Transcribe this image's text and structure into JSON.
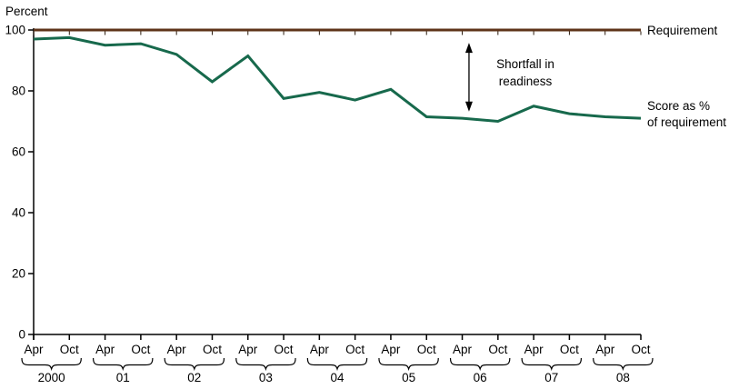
{
  "chart_data": {
    "type": "line",
    "title": "",
    "ylabel": "Percent",
    "xlabel": "",
    "ylim": [
      0,
      100
    ],
    "yticks": [
      0,
      20,
      40,
      60,
      80,
      100
    ],
    "grid": false,
    "legend_position": "right-of-lines",
    "x_tick_labels": [
      "Apr",
      "Oct",
      "Apr",
      "Oct",
      "Apr",
      "Oct",
      "Apr",
      "Oct",
      "Apr",
      "Oct",
      "Apr",
      "Oct",
      "Apr",
      "Oct",
      "Apr",
      "Oct",
      "Apr",
      "Oct"
    ],
    "year_groups": [
      "2000",
      "01",
      "02",
      "03",
      "04",
      "05",
      "06",
      "07",
      "08"
    ],
    "series": [
      {
        "name": "Requirement",
        "color": "#5e3419",
        "constant_value": 100,
        "values": [
          100,
          100,
          100,
          100,
          100,
          100,
          100,
          100,
          100,
          100,
          100,
          100,
          100,
          100,
          100,
          100,
          100,
          100
        ]
      },
      {
        "name": "Score as % of requirement",
        "color": "#17694c",
        "values": [
          97,
          97.5,
          95,
          95.5,
          92,
          83,
          91.5,
          77.5,
          79.5,
          77,
          80.5,
          71.5,
          71,
          70,
          75,
          72.5,
          71.5,
          71
        ]
      }
    ],
    "annotation": {
      "line1": "Shortfall in",
      "line2": "readiness",
      "arrow_between_values": [
        95.5,
        73.5
      ],
      "arrow_x_fraction": 0.717
    }
  },
  "labels": {
    "percent": "Percent",
    "requirement": "Requirement",
    "score_line1": "Score as %",
    "score_line2": "of requirement"
  },
  "colors": {
    "requirement_line": "#5e3419",
    "score_line": "#17694c",
    "axis": "#000000",
    "text": "#000000",
    "background": "#ffffff"
  }
}
